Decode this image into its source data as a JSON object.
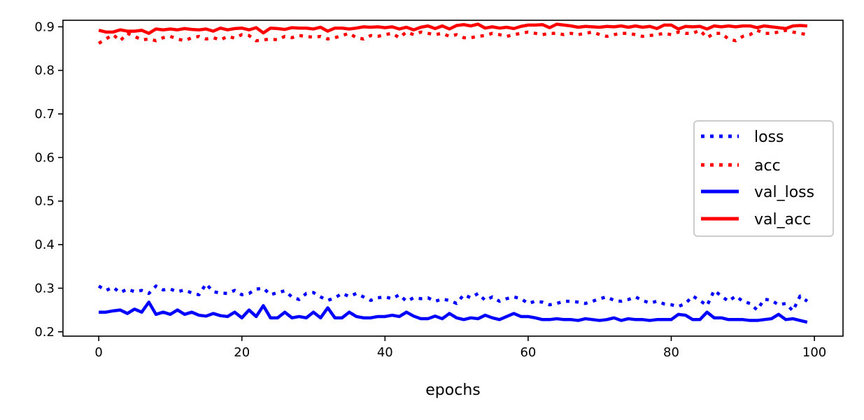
{
  "chart_data": {
    "type": "line",
    "title": "",
    "xlabel": "epochs",
    "ylabel": "",
    "xlim": [
      -5,
      104
    ],
    "ylim": [
      0.19,
      0.915
    ],
    "x_ticks": [
      0,
      20,
      40,
      60,
      80,
      100
    ],
    "y_ticks": [
      0.2,
      0.3,
      0.4,
      0.5,
      0.6,
      0.7,
      0.8,
      0.9
    ],
    "x_tick_labels": [
      "0",
      "20",
      "40",
      "60",
      "80",
      "100"
    ],
    "y_tick_labels": [
      "0.2",
      "0.3",
      "0.4",
      "0.5",
      "0.6",
      "0.7",
      "0.8",
      "0.9"
    ],
    "grid": false,
    "legend_position": "center-right",
    "x": [
      0,
      1,
      2,
      3,
      4,
      5,
      6,
      7,
      8,
      9,
      10,
      11,
      12,
      13,
      14,
      15,
      16,
      17,
      18,
      19,
      20,
      21,
      22,
      23,
      24,
      25,
      26,
      27,
      28,
      29,
      30,
      31,
      32,
      33,
      34,
      35,
      36,
      37,
      38,
      39,
      40,
      41,
      42,
      43,
      44,
      45,
      46,
      47,
      48,
      49,
      50,
      51,
      52,
      53,
      54,
      55,
      56,
      57,
      58,
      59,
      60,
      61,
      62,
      63,
      64,
      65,
      66,
      67,
      68,
      69,
      70,
      71,
      72,
      73,
      74,
      75,
      76,
      77,
      78,
      79,
      80,
      81,
      82,
      83,
      84,
      85,
      86,
      87,
      88,
      89,
      90,
      91,
      92,
      93,
      94,
      95,
      96,
      97,
      98,
      99
    ],
    "series": [
      {
        "name": "loss",
        "color": "#0000ff",
        "style": "dotted",
        "values": [
          0.305,
          0.295,
          0.302,
          0.29,
          0.298,
          0.292,
          0.295,
          0.288,
          0.305,
          0.296,
          0.298,
          0.292,
          0.296,
          0.289,
          0.285,
          0.31,
          0.292,
          0.289,
          0.288,
          0.295,
          0.285,
          0.288,
          0.298,
          0.3,
          0.285,
          0.29,
          0.294,
          0.28,
          0.274,
          0.288,
          0.29,
          0.28,
          0.272,
          0.278,
          0.288,
          0.281,
          0.288,
          0.28,
          0.272,
          0.278,
          0.28,
          0.276,
          0.285,
          0.27,
          0.278,
          0.276,
          0.278,
          0.27,
          0.275,
          0.272,
          0.265,
          0.285,
          0.278,
          0.288,
          0.272,
          0.28,
          0.27,
          0.276,
          0.28,
          0.276,
          0.265,
          0.27,
          0.268,
          0.262,
          0.265,
          0.27,
          0.27,
          0.268,
          0.265,
          0.27,
          0.276,
          0.28,
          0.272,
          0.27,
          0.274,
          0.28,
          0.272,
          0.266,
          0.27,
          0.264,
          0.262,
          0.258,
          0.265,
          0.282,
          0.272,
          0.26,
          0.295,
          0.282,
          0.27,
          0.282,
          0.27,
          0.265,
          0.25,
          0.275,
          0.272,
          0.262,
          0.265,
          0.248,
          0.282,
          0.27
        ]
      },
      {
        "name": "acc",
        "color": "#ff0000",
        "style": "dotted",
        "values": [
          0.862,
          0.872,
          0.882,
          0.868,
          0.885,
          0.878,
          0.87,
          0.872,
          0.868,
          0.875,
          0.878,
          0.872,
          0.868,
          0.875,
          0.878,
          0.872,
          0.875,
          0.87,
          0.878,
          0.874,
          0.882,
          0.88,
          0.868,
          0.87,
          0.872,
          0.87,
          0.878,
          0.875,
          0.88,
          0.878,
          0.876,
          0.878,
          0.872,
          0.875,
          0.88,
          0.885,
          0.875,
          0.872,
          0.88,
          0.878,
          0.882,
          0.885,
          0.875,
          0.888,
          0.882,
          0.888,
          0.885,
          0.882,
          0.885,
          0.878,
          0.882,
          0.875,
          0.875,
          0.878,
          0.88,
          0.885,
          0.882,
          0.878,
          0.882,
          0.885,
          0.888,
          0.885,
          0.882,
          0.885,
          0.885,
          0.882,
          0.885,
          0.882,
          0.885,
          0.888,
          0.882,
          0.878,
          0.882,
          0.885,
          0.885,
          0.882,
          0.878,
          0.88,
          0.882,
          0.885,
          0.882,
          0.888,
          0.885,
          0.885,
          0.892,
          0.875,
          0.885,
          0.885,
          0.872,
          0.868,
          0.878,
          0.882,
          0.892,
          0.885,
          0.885,
          0.888,
          0.892,
          0.888,
          0.885,
          0.882
        ]
      },
      {
        "name": "val_loss",
        "color": "#0000ff",
        "style": "solid",
        "values": [
          0.245,
          0.245,
          0.248,
          0.25,
          0.242,
          0.252,
          0.245,
          0.268,
          0.24,
          0.245,
          0.24,
          0.25,
          0.24,
          0.245,
          0.238,
          0.236,
          0.242,
          0.237,
          0.235,
          0.245,
          0.232,
          0.25,
          0.235,
          0.26,
          0.232,
          0.232,
          0.245,
          0.232,
          0.235,
          0.232,
          0.245,
          0.232,
          0.255,
          0.232,
          0.232,
          0.245,
          0.235,
          0.232,
          0.232,
          0.235,
          0.235,
          0.238,
          0.235,
          0.245,
          0.236,
          0.23,
          0.23,
          0.236,
          0.23,
          0.242,
          0.232,
          0.228,
          0.232,
          0.23,
          0.238,
          0.232,
          0.228,
          0.235,
          0.242,
          0.235,
          0.235,
          0.232,
          0.228,
          0.228,
          0.23,
          0.228,
          0.228,
          0.226,
          0.23,
          0.228,
          0.226,
          0.228,
          0.232,
          0.226,
          0.23,
          0.228,
          0.228,
          0.226,
          0.228,
          0.228,
          0.228,
          0.24,
          0.238,
          0.228,
          0.228,
          0.245,
          0.232,
          0.232,
          0.228,
          0.228,
          0.228,
          0.226,
          0.226,
          0.228,
          0.23,
          0.24,
          0.228,
          0.23,
          0.226,
          0.222
        ]
      },
      {
        "name": "val_acc",
        "color": "#ff0000",
        "style": "solid",
        "values": [
          0.892,
          0.888,
          0.888,
          0.893,
          0.89,
          0.89,
          0.892,
          0.885,
          0.895,
          0.893,
          0.895,
          0.893,
          0.896,
          0.894,
          0.893,
          0.895,
          0.89,
          0.897,
          0.893,
          0.896,
          0.897,
          0.893,
          0.898,
          0.886,
          0.897,
          0.896,
          0.894,
          0.898,
          0.897,
          0.897,
          0.895,
          0.899,
          0.89,
          0.897,
          0.897,
          0.895,
          0.897,
          0.9,
          0.899,
          0.9,
          0.898,
          0.9,
          0.895,
          0.899,
          0.893,
          0.899,
          0.902,
          0.896,
          0.902,
          0.895,
          0.903,
          0.905,
          0.902,
          0.906,
          0.897,
          0.9,
          0.897,
          0.899,
          0.896,
          0.901,
          0.904,
          0.904,
          0.905,
          0.898,
          0.906,
          0.904,
          0.902,
          0.899,
          0.901,
          0.9,
          0.899,
          0.901,
          0.9,
          0.902,
          0.899,
          0.902,
          0.899,
          0.901,
          0.896,
          0.904,
          0.904,
          0.895,
          0.901,
          0.9,
          0.901,
          0.895,
          0.902,
          0.9,
          0.902,
          0.9,
          0.902,
          0.902,
          0.898,
          0.902,
          0.9,
          0.898,
          0.896,
          0.902,
          0.903,
          0.902
        ]
      }
    ]
  }
}
